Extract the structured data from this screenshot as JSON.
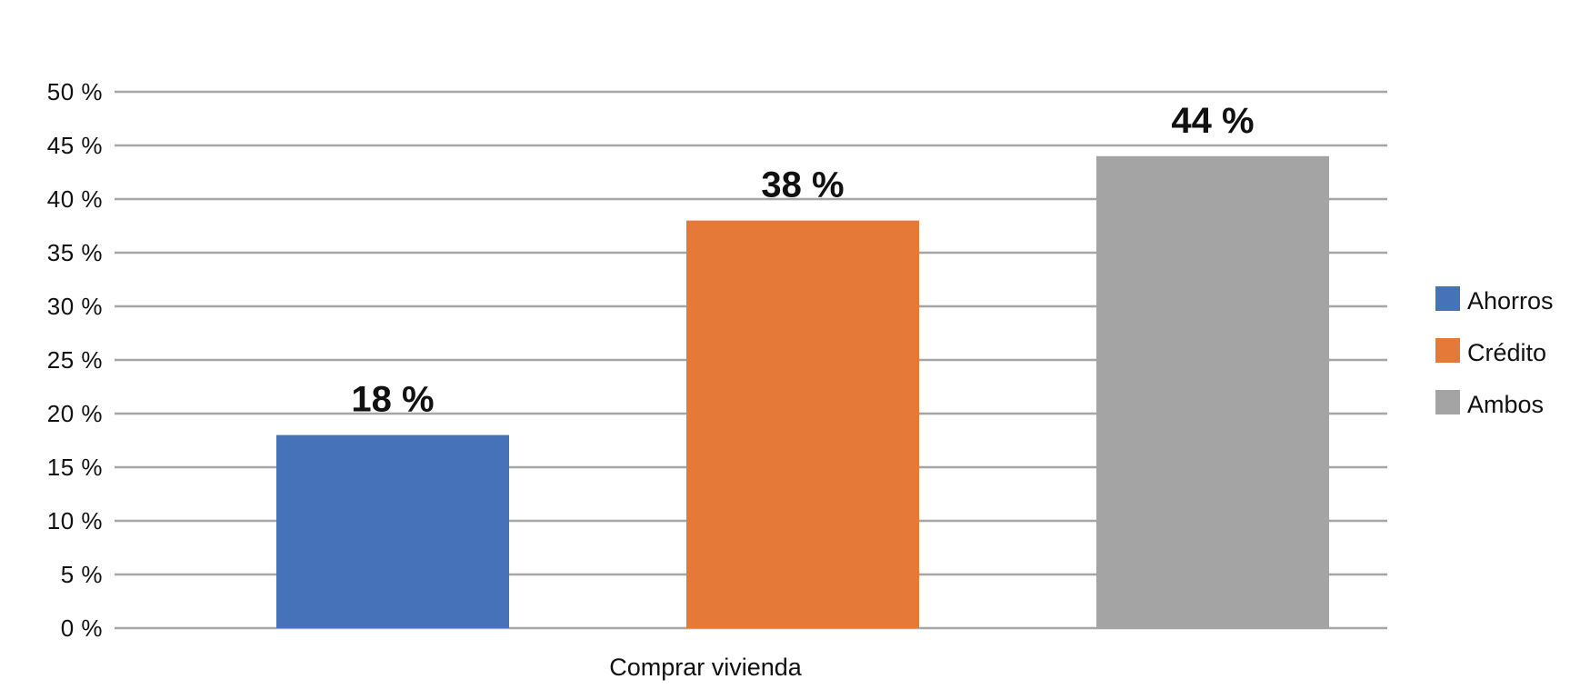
{
  "chart_data": {
    "type": "bar",
    "categories": [
      "Comprar vivienda"
    ],
    "series": [
      {
        "name": "Ahorros",
        "values": [
          18
        ],
        "color": "#4672B9",
        "label": "18 %"
      },
      {
        "name": "Crédito",
        "values": [
          38
        ],
        "color": "#E47938",
        "label": "38 %"
      },
      {
        "name": "Ambos",
        "values": [
          44
        ],
        "color": "#A5A4A4",
        "label": "44 %"
      }
    ],
    "ylim": [
      0,
      50
    ],
    "yticks": [
      {
        "value": 0,
        "label": "0 %"
      },
      {
        "value": 5,
        "label": "5 %"
      },
      {
        "value": 10,
        "label": "10 %"
      },
      {
        "value": 15,
        "label": "15 %"
      },
      {
        "value": 20,
        "label": "20 %"
      },
      {
        "value": 25,
        "label": "25 %"
      },
      {
        "value": 30,
        "label": "30 %"
      },
      {
        "value": 35,
        "label": "35 %"
      },
      {
        "value": 40,
        "label": "40 %"
      },
      {
        "value": 45,
        "label": "45 %"
      },
      {
        "value": 50,
        "label": "50 %"
      }
    ],
    "grid": true,
    "gridline_color": "#A6A6A6",
    "legend_position": "right"
  }
}
